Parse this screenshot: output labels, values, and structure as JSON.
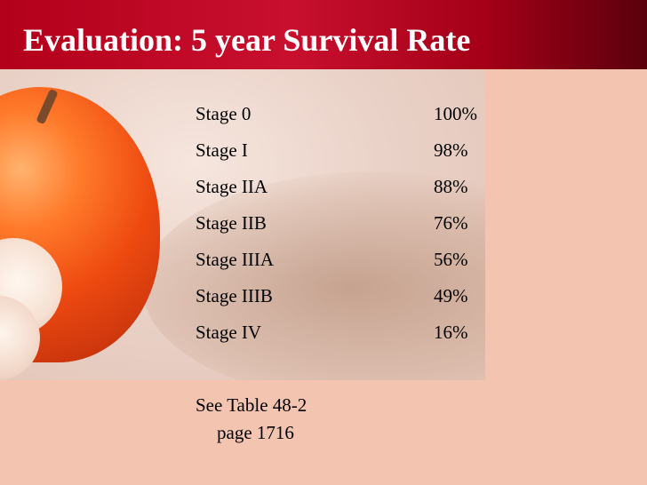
{
  "slide": {
    "title": "Evaluation: 5 year Survival Rate",
    "colors": {
      "title_bar": "#c8102e",
      "background": "#f3c4b0",
      "title_text": "#ffffff"
    },
    "rows": [
      {
        "stage": "Stage 0",
        "rate": "100%"
      },
      {
        "stage": "Stage I",
        "rate": "98%"
      },
      {
        "stage": "Stage IIA",
        "rate": "88%"
      },
      {
        "stage": "Stage IIB",
        "rate": "76%"
      },
      {
        "stage": "Stage IIIA",
        "rate": "56%"
      },
      {
        "stage": "Stage IIIB",
        "rate": "49%"
      },
      {
        "stage": "Stage IV",
        "rate": "16%"
      }
    ],
    "note": {
      "line1": "See Table 48-2",
      "line2": "page 1716"
    }
  }
}
